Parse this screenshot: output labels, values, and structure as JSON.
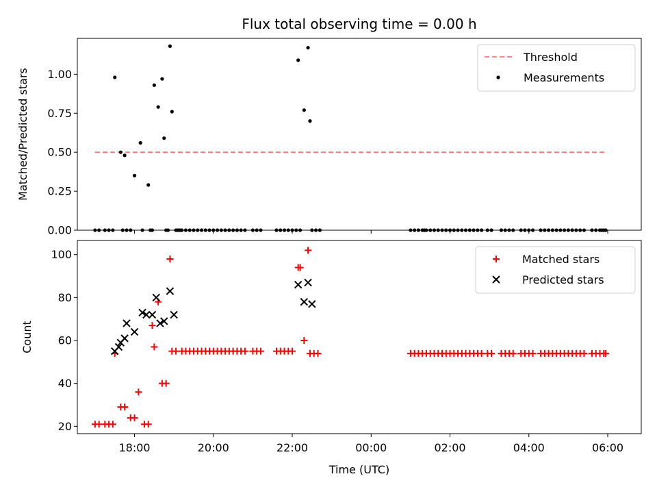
{
  "chart_data": {
    "title": "Flux total observing time = 0.00 h",
    "xlabel": "Time (UTC)",
    "x_unit": "hours since 17:00 UTC",
    "xlim": [
      -0.45,
      13.85
    ],
    "xticks": [
      {
        "value": 1,
        "label": "18:00"
      },
      {
        "value": 3,
        "label": "20:00"
      },
      {
        "value": 5,
        "label": "22:00"
      },
      {
        "value": 7,
        "label": "00:00"
      },
      {
        "value": 9,
        "label": "02:00"
      },
      {
        "value": 11,
        "label": "04:00"
      },
      {
        "value": 13,
        "label": "06:00"
      }
    ],
    "panels": [
      {
        "type": "scatter",
        "ylabel": "Matched/Predicted stars",
        "ylim": [
          0,
          1.23
        ],
        "yticks": [
          {
            "value": 0,
            "label": "0.00"
          },
          {
            "value": 0.25,
            "label": "0.25"
          },
          {
            "value": 0.5,
            "label": "0.50"
          },
          {
            "value": 0.75,
            "label": "0.75"
          },
          {
            "value": 1.0,
            "label": "1.00"
          }
        ],
        "legend": {
          "position": "top-right",
          "entries": [
            "Threshold",
            "Measurements"
          ]
        },
        "threshold": {
          "name": "Threshold",
          "value": 0.5,
          "x": [
            0.0,
            12.95
          ],
          "color": "#ff7777"
        },
        "series": [
          {
            "name": "Measurements",
            "color": "#000000",
            "x": [
              0.5,
              0.65,
              0.75,
              1.0,
              0.7,
              0.8,
              0.9,
              1.15,
              1.35,
              1.4,
              1.5,
              1.6,
              1.7,
              1.75,
              1.85,
              1.9,
              1.95,
              2.05,
              0.0,
              0.1,
              0.25,
              0.35,
              0.45,
              1.2,
              1.45,
              1.8,
              2.1,
              2.15,
              2.2,
              2.3,
              2.4,
              2.5,
              2.6,
              2.7,
              2.8,
              2.9,
              3.0,
              3.1,
              3.2,
              3.3,
              3.4,
              3.5,
              3.6,
              3.7,
              3.8,
              4.0,
              4.1,
              4.2,
              4.6,
              4.7,
              4.8,
              4.9,
              5.0,
              5.1,
              5.2,
              5.5,
              5.6,
              5.7,
              5.15,
              5.3,
              5.4,
              5.45,
              8.0,
              8.1,
              8.2,
              8.3,
              8.35,
              8.4,
              8.5,
              8.6,
              8.7,
              8.8,
              8.9,
              9.0,
              9.1,
              9.2,
              9.3,
              9.4,
              9.5,
              9.6,
              9.7,
              9.8,
              9.95,
              10.05,
              10.3,
              10.4,
              10.5,
              10.6,
              10.8,
              10.9,
              11.0,
              11.1,
              11.3,
              11.4,
              11.5,
              11.6,
              11.7,
              11.8,
              11.9,
              12.0,
              12.1,
              12.2,
              12.3,
              12.4,
              12.6,
              12.7,
              12.8,
              12.85,
              12.9,
              12.95
            ],
            "y": [
              0.98,
              0.5,
              0.48,
              0.35,
              0.0,
              0.0,
              0.0,
              0.56,
              0.29,
              0.0,
              0.93,
              0.79,
              0.97,
              0.59,
              0.0,
              1.18,
              0.76,
              0.0,
              0,
              0,
              0,
              0,
              0,
              0,
              0,
              0,
              0,
              0,
              0,
              0,
              0,
              0,
              0,
              0,
              0,
              0,
              0,
              0,
              0,
              0,
              0,
              0,
              0,
              0,
              0,
              0,
              0,
              0,
              0,
              0,
              0,
              0,
              0,
              0,
              0,
              0,
              0,
              0,
              1.09,
              0.77,
              1.17,
              0.7,
              0,
              0,
              0,
              0,
              0,
              0,
              0,
              0,
              0,
              0,
              0,
              0,
              0,
              0,
              0,
              0,
              0,
              0,
              0,
              0,
              0,
              0,
              0,
              0,
              0,
              0,
              0,
              0,
              0,
              0,
              0,
              0,
              0,
              0,
              0,
              0,
              0,
              0,
              0,
              0,
              0,
              0,
              0,
              0,
              0,
              0,
              0,
              0
            ]
          }
        ]
      },
      {
        "type": "scatter",
        "ylabel": "Count",
        "ylim": [
          16.6,
          106.6
        ],
        "yticks": [
          {
            "value": 20,
            "label": "20"
          },
          {
            "value": 40,
            "label": "40"
          },
          {
            "value": 60,
            "label": "60"
          },
          {
            "value": 80,
            "label": "80"
          },
          {
            "value": 100,
            "label": "100"
          }
        ],
        "legend": {
          "position": "top-right",
          "entries": [
            "Matched stars",
            "Predicted stars"
          ]
        },
        "series": [
          {
            "name": "Matched stars",
            "marker": "plus",
            "color": "#ff0000",
            "x": [
              0.0,
              0.1,
              0.25,
              0.35,
              0.45,
              0.5,
              0.65,
              0.75,
              0.9,
              1.0,
              1.1,
              1.25,
              1.35,
              1.45,
              1.5,
              1.6,
              1.7,
              1.8,
              1.9,
              1.95,
              2.05,
              2.2,
              2.3,
              2.4,
              2.5,
              2.6,
              2.7,
              2.8,
              2.9,
              3.0,
              3.1,
              3.2,
              3.3,
              3.4,
              3.5,
              3.6,
              3.7,
              3.8,
              4.0,
              4.1,
              4.2,
              4.6,
              4.7,
              4.8,
              4.9,
              5.0,
              5.15,
              5.2,
              5.3,
              5.4,
              5.45,
              5.55,
              5.65,
              8.0,
              8.1,
              8.2,
              8.3,
              8.4,
              8.5,
              8.6,
              8.7,
              8.8,
              8.9,
              9.0,
              9.1,
              9.2,
              9.3,
              9.4,
              9.5,
              9.6,
              9.7,
              9.8,
              9.95,
              10.05,
              10.3,
              10.4,
              10.5,
              10.6,
              10.8,
              10.9,
              11.0,
              11.1,
              11.3,
              11.4,
              11.5,
              11.6,
              11.7,
              11.8,
              11.9,
              12.0,
              12.1,
              12.2,
              12.3,
              12.4,
              12.6,
              12.7,
              12.8,
              12.9,
              12.95
            ],
            "y": [
              21,
              21,
              21,
              21,
              21,
              54,
              29,
              29,
              24,
              24,
              36,
              21,
              21,
              67,
              57,
              78,
              40,
              40,
              98,
              55,
              55,
              55,
              55,
              55,
              55,
              55,
              55,
              55,
              55,
              55,
              55,
              55,
              55,
              55,
              55,
              55,
              55,
              55,
              55,
              55,
              55,
              55,
              55,
              55,
              55,
              55,
              94,
              94,
              60,
              102,
              54,
              54,
              54,
              54,
              54,
              54,
              54,
              54,
              54,
              54,
              54,
              54,
              54,
              54,
              54,
              54,
              54,
              54,
              54,
              54,
              54,
              54,
              54,
              54,
              54,
              54,
              54,
              54,
              54,
              54,
              54,
              54,
              54,
              54,
              54,
              54,
              54,
              54,
              54,
              54,
              54,
              54,
              54,
              54,
              54,
              54,
              54,
              54,
              54
            ]
          },
          {
            "name": "Predicted stars",
            "marker": "x",
            "color": "#000000",
            "x": [
              0.5,
              0.6,
              0.65,
              0.75,
              0.8,
              1.0,
              1.2,
              1.3,
              1.45,
              1.55,
              1.65,
              1.75,
              1.9,
              2.0,
              5.15,
              5.3,
              5.4,
              5.5
            ],
            "y": [
              55,
              57,
              59,
              61,
              68,
              64,
              73,
              72,
              72,
              80,
              68,
              69,
              83,
              72,
              86,
              78,
              87,
              77
            ]
          }
        ]
      }
    ]
  }
}
